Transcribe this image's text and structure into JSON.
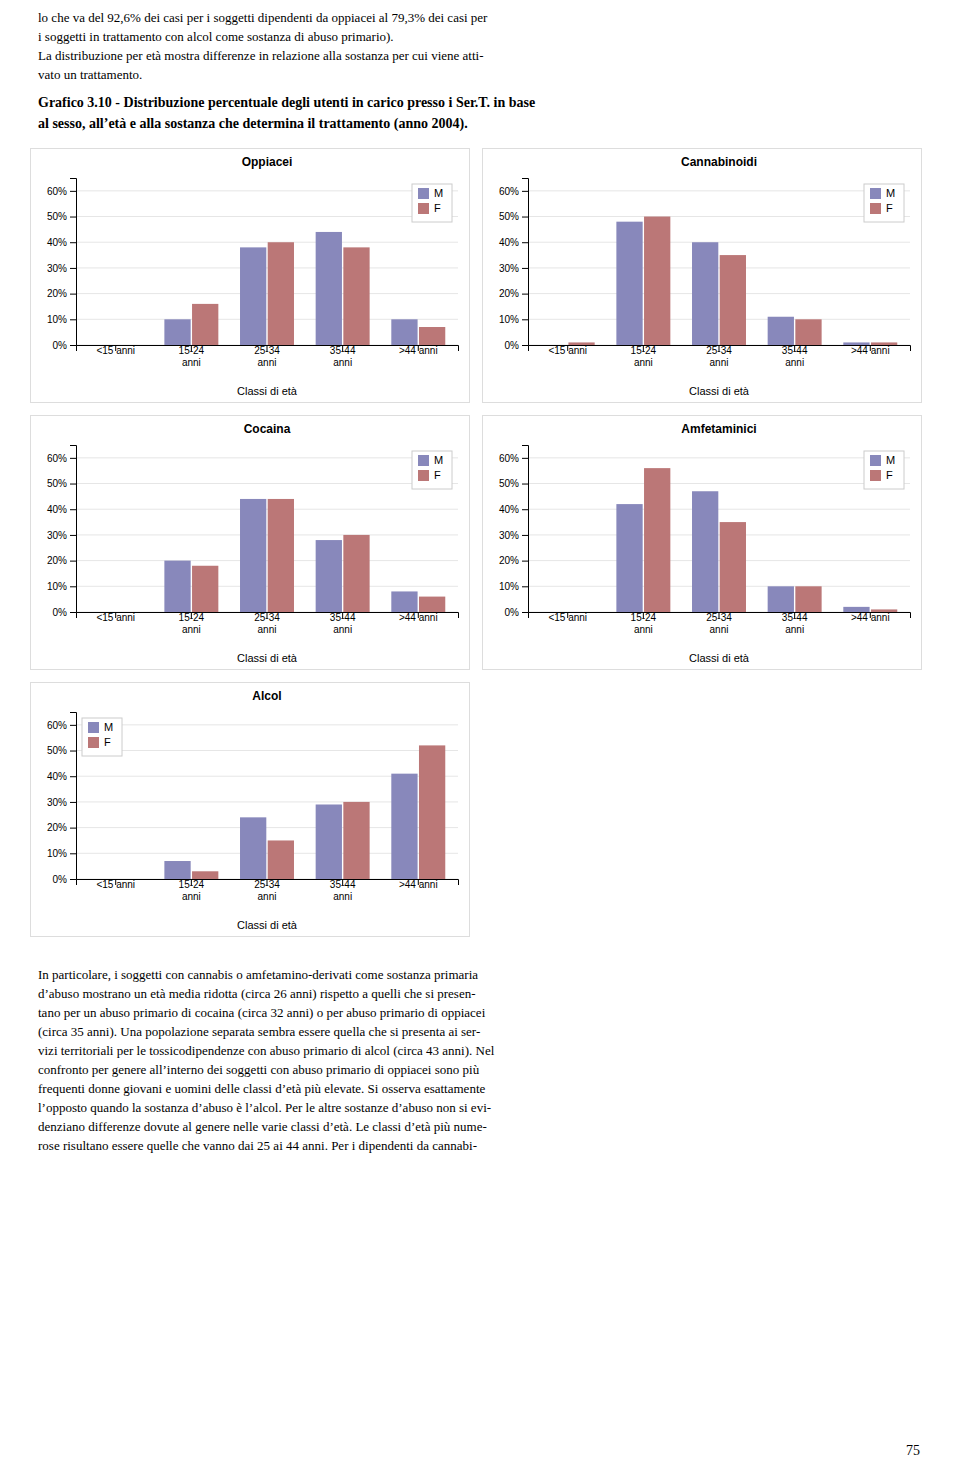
{
  "header_lines": [
    "lo che va del 92,6% dei casi per i soggetti dipendenti da oppiacei al 79,3% dei casi per",
    "i soggetti in trattamento con alcol come sostanza di abuso primario).",
    "La distribuzione per età mostra differenze in relazione alla sostanza per cui viene atti-",
    "vato un trattamento."
  ],
  "figure_title": [
    "Grafico 3.10  - Distribuzione percentuale degli utenti in carico presso i Ser.T. in base",
    "al sesso, all’età e alla sostanza che determina il trattamento (anno 2004)."
  ],
  "chart_data": [
    {
      "type": "bar",
      "title": "Oppiacei",
      "categories": [
        "<15 anni",
        "15-24\nanni",
        "25-34\nanni",
        "35-44\nanni",
        ">44 anni"
      ],
      "series": [
        {
          "name": "M",
          "color": "#8888bb",
          "values": [
            0,
            10,
            38,
            44,
            10
          ]
        },
        {
          "name": "F",
          "color": "#bb7777",
          "values": [
            0,
            16,
            40,
            38,
            7
          ]
        }
      ],
      "xlabel": "Classi di età",
      "ylim": [
        0,
        65
      ],
      "yticks": [
        {
          "value": 0,
          "label": "0%"
        },
        {
          "value": 10,
          "label": "10%"
        },
        {
          "value": 20,
          "label": "20%"
        },
        {
          "value": 30,
          "label": "30%"
        },
        {
          "value": 40,
          "label": "40%"
        },
        {
          "value": 50,
          "label": "50%"
        },
        {
          "value": 60,
          "label": "60%"
        }
      ],
      "grid": true,
      "legend": "upper right"
    },
    {
      "type": "bar",
      "title": "Cannabinoidi",
      "categories": [
        "<15 anni",
        "15-24\nanni",
        "25-34\nanni",
        "35-44\nanni",
        ">44 anni"
      ],
      "series": [
        {
          "name": "M",
          "color": "#8888bb",
          "values": [
            0,
            48,
            40,
            11,
            1
          ]
        },
        {
          "name": "F",
          "color": "#bb7777",
          "values": [
            1,
            50,
            35,
            10,
            1
          ]
        }
      ],
      "xlabel": "Classi di età",
      "ylim": [
        0,
        65
      ],
      "yticks": [
        {
          "value": 0,
          "label": "0%"
        },
        {
          "value": 10,
          "label": "10%"
        },
        {
          "value": 20,
          "label": "20%"
        },
        {
          "value": 30,
          "label": "30%"
        },
        {
          "value": 40,
          "label": "40%"
        },
        {
          "value": 50,
          "label": "50%"
        },
        {
          "value": 60,
          "label": "60%"
        }
      ],
      "grid": true,
      "legend": "upper right"
    },
    {
      "type": "bar",
      "title": "Cocaina",
      "categories": [
        "<15 anni",
        "15-24\nanni",
        "25-34\nanni",
        "35-44\nanni",
        ">44 anni"
      ],
      "series": [
        {
          "name": "M",
          "color": "#8888bb",
          "values": [
            0,
            20,
            44,
            28,
            8
          ]
        },
        {
          "name": "F",
          "color": "#bb7777",
          "values": [
            0,
            18,
            44,
            30,
            6
          ]
        }
      ],
      "xlabel": "Classi di età",
      "ylim": [
        0,
        65
      ],
      "yticks": [
        {
          "value": 0,
          "label": "0%"
        },
        {
          "value": 10,
          "label": "10%"
        },
        {
          "value": 20,
          "label": "20%"
        },
        {
          "value": 30,
          "label": "30%"
        },
        {
          "value": 40,
          "label": "40%"
        },
        {
          "value": 50,
          "label": "50%"
        },
        {
          "value": 60,
          "label": "60%"
        }
      ],
      "grid": true,
      "legend": "upper right"
    },
    {
      "type": "bar",
      "title": "Amfetaminici",
      "categories": [
        "<15 anni",
        "15-24\nanni",
        "25-34\nanni",
        "35-44\nanni",
        ">44 anni"
      ],
      "series": [
        {
          "name": "M",
          "color": "#8888bb",
          "values": [
            0,
            42,
            47,
            10,
            2
          ]
        },
        {
          "name": "F",
          "color": "#bb7777",
          "values": [
            0,
            56,
            35,
            10,
            1
          ]
        }
      ],
      "xlabel": "Classi di età",
      "ylim": [
        0,
        65
      ],
      "yticks": [
        {
          "value": 0,
          "label": "0%"
        },
        {
          "value": 10,
          "label": "10%"
        },
        {
          "value": 20,
          "label": "20%"
        },
        {
          "value": 30,
          "label": "30%"
        },
        {
          "value": 40,
          "label": "40%"
        },
        {
          "value": 50,
          "label": "50%"
        },
        {
          "value": 60,
          "label": "60%"
        }
      ],
      "grid": true,
      "legend": "upper right"
    },
    {
      "type": "bar",
      "title": "Alcol",
      "categories": [
        "<15 anni",
        "15-24\nanni",
        "25-34\nanni",
        "35-44\nanni",
        ">44 anni"
      ],
      "series": [
        {
          "name": "M",
          "color": "#8888bb",
          "values": [
            0,
            7,
            24,
            29,
            41
          ]
        },
        {
          "name": "F",
          "color": "#bb7777",
          "values": [
            0,
            3,
            15,
            30,
            52
          ]
        }
      ],
      "xlabel": "Classi di età",
      "ylim": [
        0,
        65
      ],
      "yticks": [
        {
          "value": 0,
          "label": "0%"
        },
        {
          "value": 10,
          "label": "10%"
        },
        {
          "value": 20,
          "label": "20%"
        },
        {
          "value": 30,
          "label": "30%"
        },
        {
          "value": 40,
          "label": "40%"
        },
        {
          "value": 50,
          "label": "50%"
        },
        {
          "value": 60,
          "label": "60%"
        }
      ],
      "grid": true,
      "legend": "upper left"
    }
  ],
  "footer_lines": [
    "In particolare, i soggetti con cannabis o amfetamino-derivati come sostanza primaria",
    "d’abuso mostrano un età media ridotta (circa 26 anni) rispetto a quelli che si presen-",
    "tano per un abuso primario di cocaina (circa 32 anni) o per abuso primario di oppiacei",
    "(circa 35 anni). Una popolazione separata sembra essere quella che si presenta ai ser-",
    "vizi territoriali per le tossicodipendenze con abuso primario di alcol (circa 43 anni). Nel",
    "confronto per genere all’interno dei soggetti con abuso primario di oppiacei sono più",
    "frequenti donne giovani e uomini delle classi d’età più elevate. Si osserva esattamente",
    "l’opposto quando la sostanza d’abuso è l’alcol. Per le altre sostanze d’abuso non si evi-",
    "denziano differenze dovute al genere nelle varie classi d’età. Le classi d’età più nume-",
    "rose risultano essere quelle che vanno dai 25 ai 44 anni. Per i dipendenti da cannabi-"
  ],
  "page_number": "75"
}
